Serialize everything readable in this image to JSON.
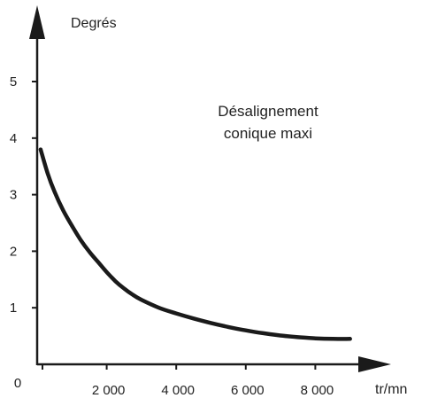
{
  "chart_data": {
    "type": "line",
    "title": "",
    "xlabel": "tr/mn",
    "ylabel": "Degrés",
    "origin_label": "0",
    "xlim": [
      0,
      9800
    ],
    "ylim": [
      0,
      5.6
    ],
    "x_ticks": [
      {
        "value": 2000,
        "label": "2 000"
      },
      {
        "value": 4000,
        "label": "4 000"
      },
      {
        "value": 6000,
        "label": "6 000"
      },
      {
        "value": 8000,
        "label": "8 000"
      }
    ],
    "y_ticks": [
      {
        "value": 1,
        "label": "1"
      },
      {
        "value": 2,
        "label": "2"
      },
      {
        "value": 3,
        "label": "3"
      },
      {
        "value": 4,
        "label": "4"
      },
      {
        "value": 5,
        "label": "5"
      }
    ],
    "annotation_lines": [
      "Désalignement",
      "conique maxi"
    ],
    "grid": false,
    "legend": "none",
    "series": [
      {
        "x": [
          100,
          300,
          500,
          750,
          1000,
          1250,
          1500,
          1750,
          2000,
          2250,
          2500,
          2750,
          3000,
          3500,
          4000,
          4500,
          5000,
          5500,
          6000,
          6500,
          7000,
          7500,
          8000,
          8500,
          9000
        ],
        "y": [
          3.8,
          3.38,
          3.05,
          2.72,
          2.45,
          2.2,
          1.99,
          1.81,
          1.63,
          1.47,
          1.34,
          1.23,
          1.14,
          1.0,
          0.9,
          0.81,
          0.73,
          0.66,
          0.6,
          0.55,
          0.51,
          0.48,
          0.46,
          0.45,
          0.45
        ],
        "color": "#1a1a1a"
      }
    ],
    "colors": {
      "ink": "#1a1a1a",
      "text": "#222222"
    }
  }
}
